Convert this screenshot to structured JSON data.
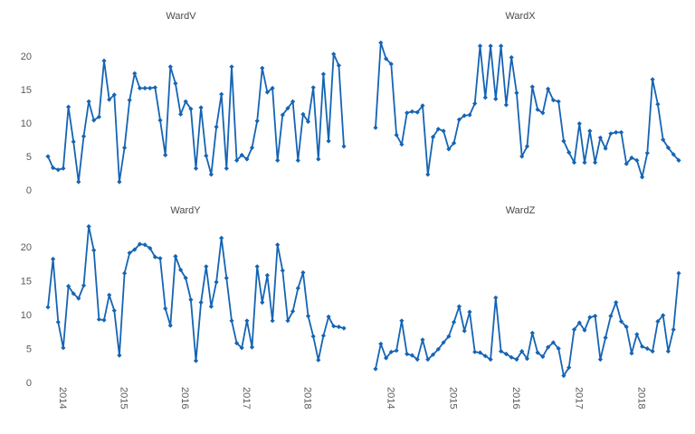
{
  "page": {
    "background": "#ffffff"
  },
  "colors": {
    "line": "#1564b4",
    "marker": "#1564b4",
    "axis_text": "#595959",
    "title_text": "#4a4a4a"
  },
  "chart_data": [
    {
      "type": "line",
      "title": "WardV",
      "y_ticks": [
        0,
        5,
        10,
        15,
        20
      ],
      "x_tick_labels": [],
      "x_tick_indices": [
        3,
        15,
        27,
        39,
        51
      ],
      "ylim": [
        0,
        23
      ],
      "grid": false,
      "legend": "none",
      "values": [
        5.0,
        3.3,
        3.0,
        3.2,
        12.4,
        7.2,
        1.2,
        8.0,
        13.2,
        10.4,
        10.9,
        19.3,
        13.5,
        14.2,
        1.2,
        6.3,
        13.4,
        17.4,
        15.2,
        15.2,
        15.2,
        15.3,
        10.4,
        5.2,
        18.4,
        15.9,
        11.3,
        13.2,
        12.1,
        3.2,
        12.3,
        5.1,
        2.3,
        9.4,
        14.3,
        3.2,
        18.4,
        4.4,
        5.2,
        4.6,
        6.3,
        10.3,
        18.2,
        14.6,
        15.2,
        4.4,
        11.2,
        12.2,
        13.2,
        4.4,
        11.3,
        10.2,
        15.3,
        4.6,
        17.3,
        7.3,
        20.3,
        18.6,
        6.5
      ]
    },
    {
      "type": "line",
      "title": "WardX",
      "y_ticks": [],
      "x_tick_labels": [],
      "x_tick_indices": [
        3,
        15,
        27,
        39,
        51
      ],
      "ylim": [
        0,
        23
      ],
      "grid": false,
      "legend": "none",
      "values": [
        9.3,
        22.0,
        19.6,
        18.8,
        8.2,
        6.8,
        11.5,
        11.7,
        11.6,
        12.6,
        2.3,
        7.9,
        9.1,
        8.8,
        6.1,
        7.0,
        10.5,
        11.1,
        11.2,
        12.9,
        21.5,
        13.8,
        21.5,
        13.6,
        21.5,
        12.7,
        19.8,
        14.5,
        5.0,
        6.5,
        15.4,
        12.0,
        11.5,
        15.1,
        13.4,
        13.2,
        7.3,
        5.6,
        4.1,
        9.9,
        4.1,
        8.8,
        4.1,
        7.8,
        6.2,
        8.4,
        8.6,
        8.6,
        3.9,
        4.8,
        4.4,
        1.9,
        5.5,
        16.5,
        12.8,
        7.5,
        6.3,
        5.3,
        4.4
      ]
    },
    {
      "type": "line",
      "title": "WardY",
      "y_ticks": [
        0,
        5,
        10,
        15,
        20
      ],
      "x_tick_labels": [
        "2014",
        "2015",
        "2016",
        "2017",
        "2018"
      ],
      "x_tick_indices": [
        3,
        15,
        27,
        39,
        51
      ],
      "ylim": [
        0,
        23
      ],
      "grid": false,
      "legend": "none",
      "values": [
        11.1,
        18.2,
        8.9,
        5.1,
        14.2,
        13.1,
        12.4,
        14.3,
        23.0,
        19.5,
        9.3,
        9.2,
        12.9,
        10.6,
        4.0,
        16.1,
        19.1,
        19.6,
        20.4,
        20.3,
        19.8,
        18.5,
        18.3,
        10.9,
        8.4,
        18.6,
        16.6,
        15.4,
        12.2,
        3.2,
        11.8,
        17.1,
        11.2,
        14.8,
        21.3,
        15.4,
        9.1,
        5.8,
        5.1,
        9.1,
        5.2,
        17.1,
        11.8,
        15.8,
        9.1,
        20.3,
        16.5,
        9.1,
        10.5,
        13.9,
        16.2,
        9.8,
        6.8,
        3.3,
        6.9,
        9.7,
        8.3,
        8.2,
        8.0
      ]
    },
    {
      "type": "line",
      "title": "WardZ",
      "y_ticks": [],
      "x_tick_labels": [
        "2014",
        "2015",
        "2016",
        "2017",
        "2018"
      ],
      "x_tick_indices": [
        3,
        15,
        27,
        39,
        51
      ],
      "ylim": [
        0,
        23
      ],
      "grid": false,
      "legend": "none",
      "values": [
        2.0,
        5.7,
        3.6,
        4.5,
        4.7,
        9.1,
        4.2,
        4.0,
        3.4,
        6.3,
        3.4,
        4.1,
        4.9,
        5.9,
        6.8,
        8.9,
        11.2,
        7.6,
        10.4,
        4.5,
        4.4,
        3.9,
        3.4,
        12.5,
        4.6,
        4.2,
        3.7,
        3.4,
        4.6,
        3.5,
        7.3,
        4.4,
        3.8,
        5.2,
        5.9,
        5.0,
        1.0,
        2.2,
        7.8,
        8.8,
        7.7,
        9.6,
        9.8,
        3.4,
        6.6,
        9.8,
        11.8,
        9.0,
        8.2,
        4.3,
        7.1,
        5.3,
        5.0,
        4.6,
        9.0,
        9.9,
        4.6,
        7.8,
        16.1
      ]
    }
  ]
}
